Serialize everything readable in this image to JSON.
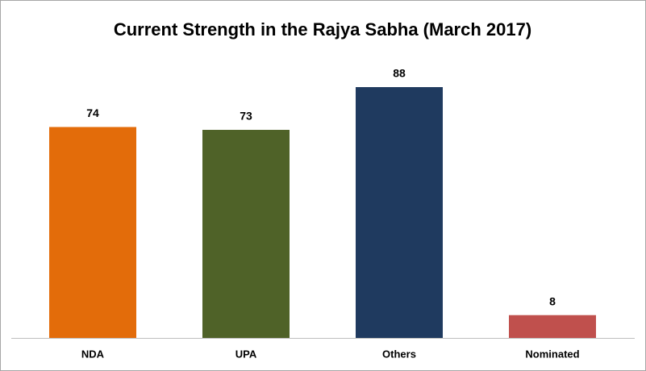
{
  "chart_data": {
    "type": "bar",
    "title": "Current Strength in the Rajya Sabha (March 2017)",
    "categories": [
      "NDA",
      "UPA",
      "Others",
      "Nominated"
    ],
    "values": [
      74,
      73,
      88,
      8
    ],
    "colors": [
      "#e36c0a",
      "#4f6228",
      "#1f3a5f",
      "#c0504d"
    ]
  }
}
